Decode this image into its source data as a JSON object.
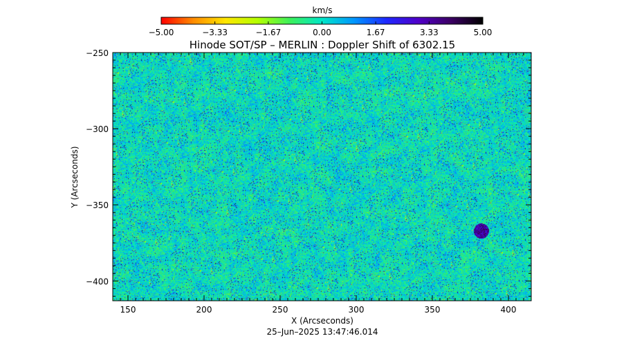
{
  "chart_data": {
    "type": "heatmap",
    "title": "Hinode SOT/SP – MERLIN : Doppler Shift of 6302.15",
    "xlabel": "X (Arcseconds)",
    "ylabel": "Y (Arcseconds)",
    "timestamp": "25–Jun–2025 13:47:46.014",
    "xlim": [
      140,
      415
    ],
    "ylim": [
      -413,
      -250
    ],
    "x_ticks": [
      150,
      200,
      250,
      300,
      350,
      400
    ],
    "x_tick_labels": [
      "150",
      "200",
      "250",
      "300",
      "350",
      "400"
    ],
    "y_ticks": [
      -250,
      -300,
      -350,
      -400
    ],
    "y_tick_labels": [
      "−250",
      "−300",
      "−350",
      "−400"
    ],
    "colorbar": {
      "unit": "km/s",
      "range": [
        -5.0,
        5.0
      ],
      "ticks": [
        -5.0,
        -3.33,
        -1.67,
        0.0,
        1.67,
        3.33,
        5.0
      ],
      "tick_labels": [
        "−5.00",
        "−3.33",
        "−1.67",
        "0.00",
        "1.67",
        "3.33",
        "5.00"
      ],
      "colors": [
        "#ff0000",
        "#ff8c00",
        "#ffe600",
        "#b4ff00",
        "#3cf05a",
        "#00e6c8",
        "#0096ff",
        "#1e28ff",
        "#5000c8",
        "#3c0064",
        "#000000"
      ]
    },
    "features": [
      {
        "description": "compact blueshift patch (positive velocity)",
        "x": 382,
        "y": -367,
        "value": 4.0
      }
    ]
  }
}
